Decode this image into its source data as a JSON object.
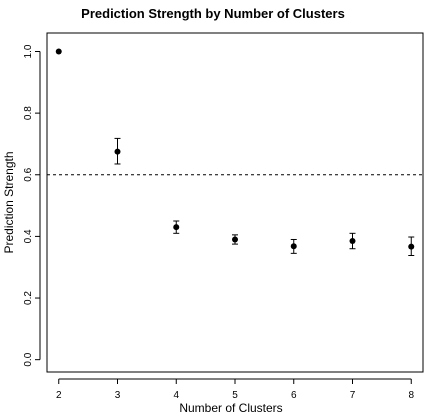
{
  "chart_data": {
    "type": "scatter",
    "title": "Prediction Strength by Number of Clusters",
    "xlabel": "Number of Clusters",
    "ylabel": "Prediction Strength",
    "x": [
      2,
      3,
      4,
      5,
      6,
      7,
      8
    ],
    "y": [
      1.0,
      0.675,
      0.43,
      0.39,
      0.368,
      0.385,
      0.367
    ],
    "error_lower": [
      1.0,
      0.635,
      0.41,
      0.375,
      0.345,
      0.36,
      0.338
    ],
    "error_upper": [
      1.0,
      0.718,
      0.45,
      0.405,
      0.39,
      0.41,
      0.398
    ],
    "xlim": [
      1.8,
      8.2
    ],
    "ylim": [
      -0.04,
      1.06
    ],
    "x_ticks": [
      "2",
      "3",
      "4",
      "5",
      "6",
      "7",
      "8"
    ],
    "y_ticks": [
      "0.0",
      "0.2",
      "0.4",
      "0.6",
      "0.8",
      "1.0"
    ],
    "reference_line": {
      "y": 0.6,
      "style": "dashed"
    },
    "grid": false,
    "legend": "none",
    "marker_color": "#000000"
  }
}
